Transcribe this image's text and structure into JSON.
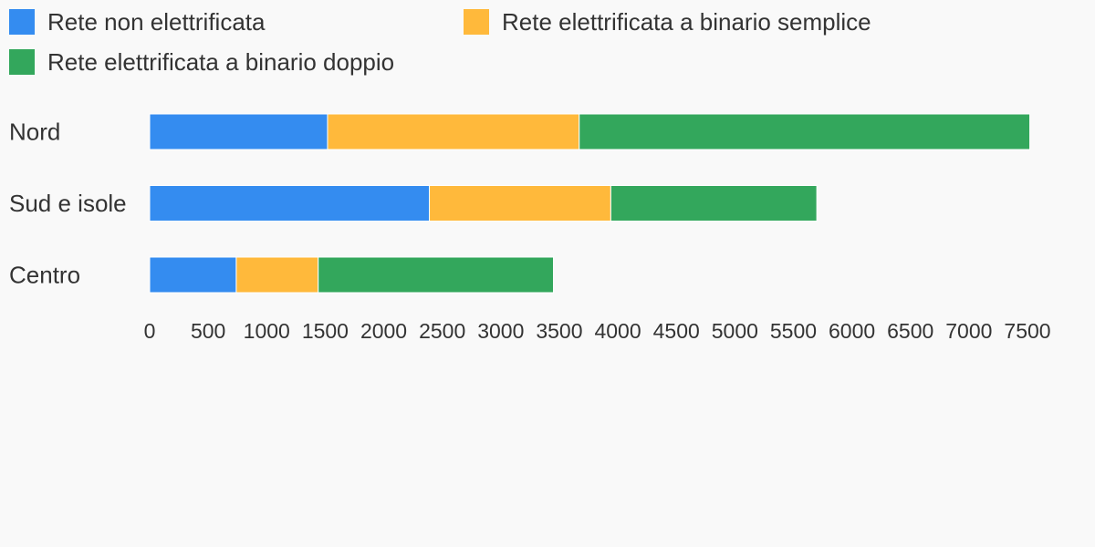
{
  "chart_data": {
    "type": "bar",
    "orientation": "horizontal",
    "stacked": true,
    "categories": [
      "Nord",
      "Sud e isole",
      "Centro"
    ],
    "series": [
      {
        "name": "Rete non elettrificata",
        "color": "#348cf0",
        "values": [
          1520,
          2390,
          740
        ]
      },
      {
        "name": "Rete elettrificata a binario semplice",
        "color": "#ffb93b",
        "values": [
          2150,
          1550,
          700
        ]
      },
      {
        "name": "Rete elettrificata a binario doppio",
        "color": "#33a75c",
        "values": [
          3850,
          1760,
          2010
        ]
      }
    ],
    "xlim": [
      0,
      7500
    ],
    "x_ticks": [
      0,
      500,
      1000,
      1500,
      2000,
      2500,
      3000,
      3500,
      4000,
      4500,
      5000,
      5500,
      6000,
      6500,
      7000,
      7500
    ],
    "grid": false,
    "legend_position": "top-left"
  }
}
